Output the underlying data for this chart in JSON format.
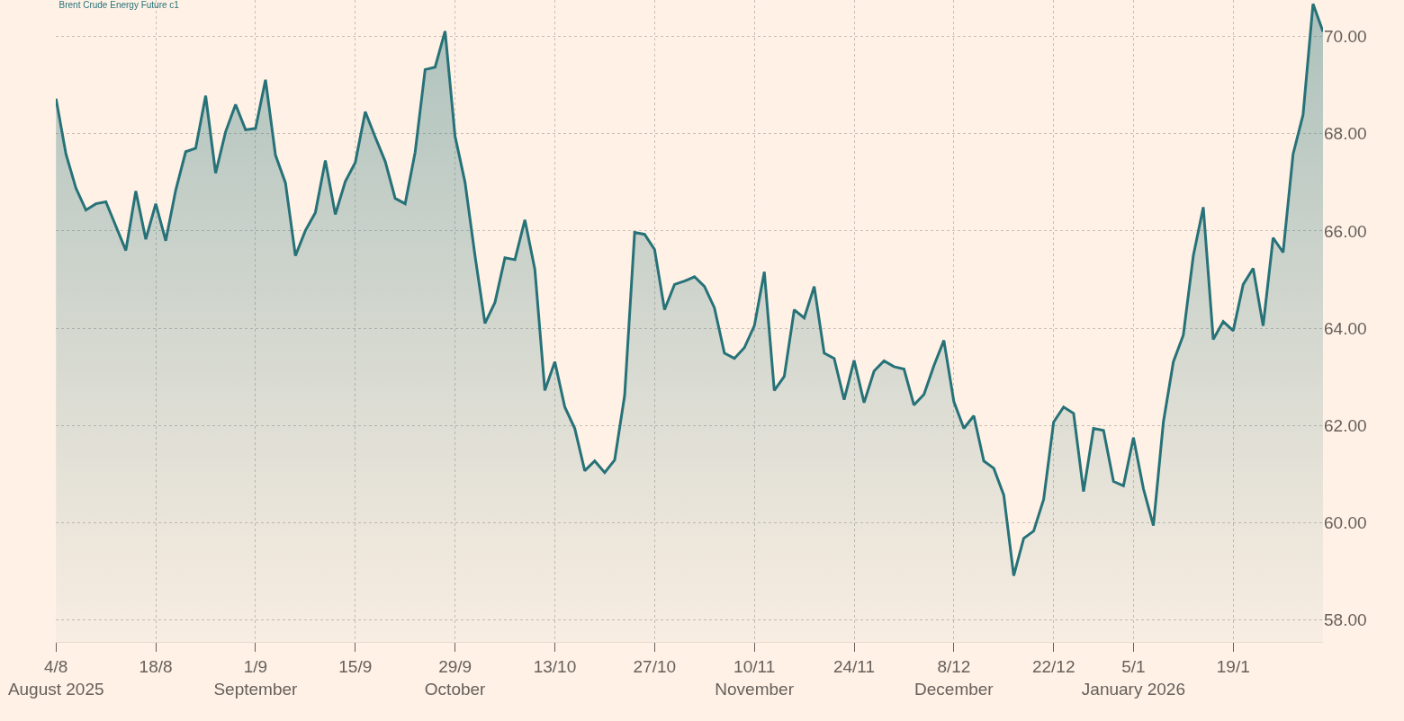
{
  "chart_data": {
    "type": "area",
    "title": "Brent Crude Energy Future c1",
    "categories": [
      "4/8\nAugust 2025",
      null,
      null,
      null,
      null,
      null,
      null,
      null,
      null,
      null,
      "18/8",
      null,
      null,
      null,
      null,
      null,
      null,
      null,
      null,
      null,
      "1/9\nSeptember",
      null,
      null,
      null,
      null,
      null,
      null,
      null,
      null,
      null,
      "15/9",
      null,
      null,
      null,
      null,
      null,
      null,
      null,
      null,
      null,
      "29/9\nOctober",
      null,
      null,
      null,
      null,
      null,
      null,
      null,
      null,
      null,
      "13/10",
      null,
      null,
      null,
      null,
      null,
      null,
      null,
      null,
      null,
      "27/10",
      null,
      null,
      null,
      null,
      null,
      null,
      null,
      null,
      null,
      "10/11\nNovember",
      null,
      null,
      null,
      null,
      null,
      null,
      null,
      null,
      null,
      "24/11",
      null,
      null,
      null,
      null,
      null,
      null,
      null,
      null,
      null,
      "8/12\nDecember",
      null,
      null,
      null,
      null,
      null,
      null,
      null,
      null,
      null,
      "22/12",
      null,
      null,
      null,
      null,
      null,
      null,
      null,
      "5/1\nJanuary 2026",
      null,
      null,
      null,
      null,
      null,
      null,
      null,
      null,
      null,
      "19/1",
      null,
      null,
      null,
      null,
      null,
      null,
      null,
      null,
      null
    ],
    "series": [
      {
        "color": "#267278",
        "values": [
          68.72,
          67.58,
          66.88,
          66.43,
          66.56,
          66.6,
          66.1,
          65.6,
          66.82,
          65.83,
          66.56,
          65.8,
          66.84,
          67.63,
          67.7,
          68.78,
          67.19,
          68.04,
          68.6,
          68.08,
          68.11,
          69.11,
          67.56,
          66.99,
          65.49,
          66.01,
          66.38,
          67.45,
          66.34,
          67.02,
          67.41,
          68.45,
          67.93,
          67.43,
          66.67,
          66.56,
          67.62,
          69.32,
          69.37,
          70.11,
          67.95,
          67.0,
          65.49,
          64.1,
          64.53,
          65.45,
          65.41,
          66.23,
          65.21,
          62.72,
          63.31,
          62.38,
          61.94,
          61.07,
          61.27,
          61.03,
          61.29,
          62.62,
          65.97,
          65.93,
          65.62,
          64.38,
          64.9,
          64.97,
          65.06,
          64.86,
          64.42,
          63.49,
          63.38,
          63.6,
          64.05,
          65.16,
          62.72,
          63.01,
          64.38,
          64.21,
          64.86,
          63.49,
          63.38,
          62.53,
          63.34,
          62.47,
          63.12,
          63.33,
          63.21,
          63.16,
          62.42,
          62.64,
          63.23,
          63.75,
          62.49,
          61.94,
          62.2,
          61.27,
          61.12,
          60.57,
          58.91,
          59.68,
          59.83,
          60.48,
          62.07,
          62.38,
          62.25,
          60.64,
          61.94,
          61.9,
          60.85,
          60.76,
          61.75,
          60.7,
          59.94,
          62.07,
          63.31,
          63.86,
          65.49,
          66.49,
          63.77,
          64.14,
          63.95,
          64.9,
          65.23,
          64.05,
          65.86,
          65.56,
          67.58,
          68.39,
          70.67,
          70.1
        ]
      }
    ],
    "ylim": [
      57.55,
      70.75
    ],
    "yticks": [
      {
        "value": 58,
        "label": "58.00"
      },
      {
        "value": 60,
        "label": "60.00"
      },
      {
        "value": 62,
        "label": "62.00"
      },
      {
        "value": 64,
        "label": "64.00"
      },
      {
        "value": 66,
        "label": "66.00"
      },
      {
        "value": 68,
        "label": "68.00"
      },
      {
        "value": 70,
        "label": "70.00"
      }
    ],
    "grid": true,
    "marker": "none",
    "line_style": "solid"
  }
}
